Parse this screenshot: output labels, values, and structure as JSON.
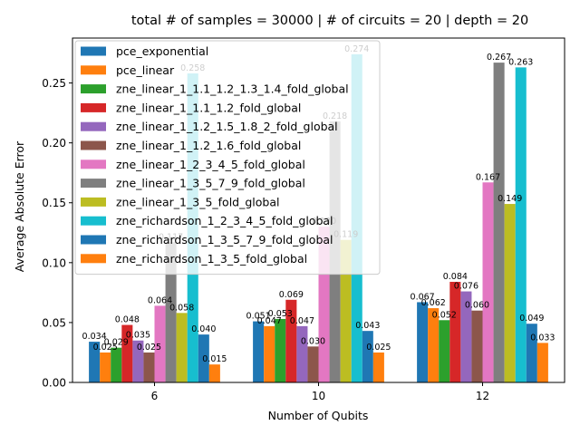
{
  "chart_data": {
    "type": "bar",
    "title": "total # of samples = 30000 | # of circuits = 20 | depth = 20",
    "xlabel": "Number of Qubits",
    "ylabel": "Average Absolute Error",
    "categories": [
      "6",
      "10",
      "12"
    ],
    "ylim": [
      0,
      0.2875
    ],
    "yticks": [
      "0.00",
      "0.05",
      "0.10",
      "0.15",
      "0.20",
      "0.25"
    ],
    "grid": false,
    "legend_position": "upper-left",
    "series": [
      {
        "name": "pce_exponential",
        "color": "#1f77b4",
        "values": [
          0.034,
          0.051,
          0.067
        ],
        "labels": [
          "0.034",
          "0.051",
          "0.067"
        ]
      },
      {
        "name": "pce_linear",
        "color": "#ff7f0e",
        "values": [
          0.025,
          0.047,
          0.062
        ],
        "labels": [
          "0.025",
          "0.047",
          "0.062"
        ]
      },
      {
        "name": "zne_linear_1_1.1_1.2_1.3_1.4_fold_global",
        "color": "#2ca02c",
        "values": [
          0.029,
          0.053,
          0.052
        ],
        "labels": [
          "0.029",
          "0.053",
          "0.052"
        ]
      },
      {
        "name": "zne_linear_1_1.1_1.2_fold_global",
        "color": "#d62728",
        "values": [
          0.048,
          0.069,
          0.084
        ],
        "labels": [
          "0.048",
          "0.069",
          "0.084"
        ]
      },
      {
        "name": "zne_linear_1_1.2_1.5_1.8_2_fold_global",
        "color": "#9467bd",
        "values": [
          0.035,
          0.047,
          0.076
        ],
        "labels": [
          "0.035",
          "0.047",
          "0.076"
        ]
      },
      {
        "name": "zne_linear_1_1.2_1.6_fold_global",
        "color": "#8c564b",
        "values": [
          0.025,
          0.03,
          0.06
        ],
        "labels": [
          "0.025",
          "0.030",
          "0.060"
        ]
      },
      {
        "name": "zne_linear_1_2_3_4_5_fold_global",
        "color": "#e377c2",
        "values": [
          0.064,
          0.13,
          0.167
        ],
        "labels": [
          "0.064",
          "0.130",
          "0.167"
        ]
      },
      {
        "name": "zne_linear_1_3_5_7_9_fold_global",
        "color": "#7f7f7f",
        "values": [
          0.117,
          0.218,
          0.267
        ],
        "labels": [
          "0.117",
          "0.218",
          "0.267"
        ]
      },
      {
        "name": "zne_linear_1_3_5_fold_global",
        "color": "#bcbd22",
        "values": [
          0.058,
          0.119,
          0.149
        ],
        "labels": [
          "0.058",
          "0.119",
          "0.149"
        ]
      },
      {
        "name": "zne_richardson_1_2_3_4_5_fold_global",
        "color": "#17becf",
        "values": [
          0.258,
          0.274,
          0.263
        ],
        "labels": [
          "0.258",
          "0.274",
          "0.263"
        ]
      },
      {
        "name": "zne_richardson_1_3_5_7_9_fold_global",
        "color": "#1f77b4",
        "values": [
          0.04,
          0.043,
          0.049
        ],
        "labels": [
          "0.040",
          "0.043",
          "0.049"
        ]
      },
      {
        "name": "zne_richardson_1_3_5_fold_global",
        "color": "#ff7f0e",
        "values": [
          0.015,
          0.025,
          0.033
        ],
        "labels": [
          "0.015",
          "0.025",
          "0.033"
        ]
      }
    ]
  }
}
